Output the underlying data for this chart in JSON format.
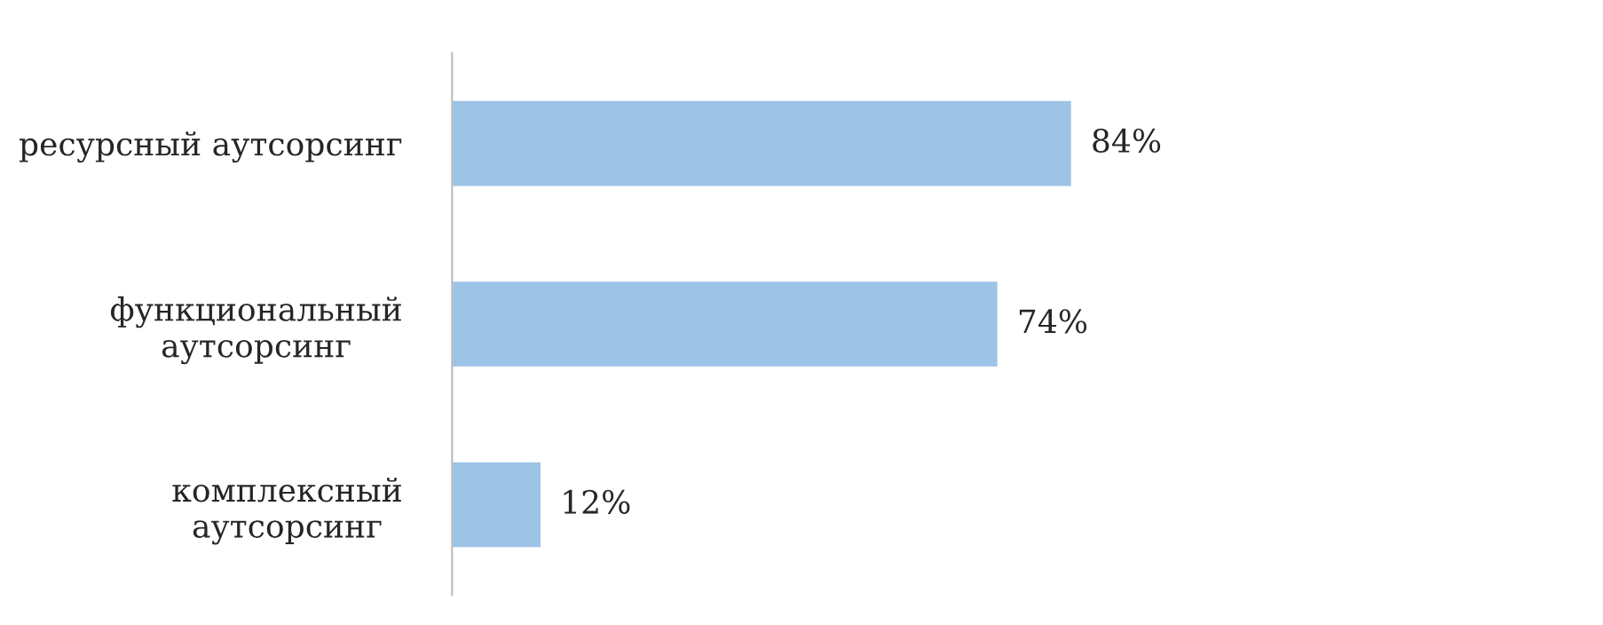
{
  "chart_data": {
    "type": "bar",
    "orientation": "horizontal",
    "categories": [
      "ресурсный аутсорсинг",
      "функциональный\nаутсорсинг",
      "комплексный\nаутсорсинг"
    ],
    "values": [
      84,
      74,
      12
    ],
    "color": "#9dc3e6",
    "value_labels": [
      "84%",
      "74%",
      "12%"
    ],
    "grid": false,
    "legend": false
  }
}
